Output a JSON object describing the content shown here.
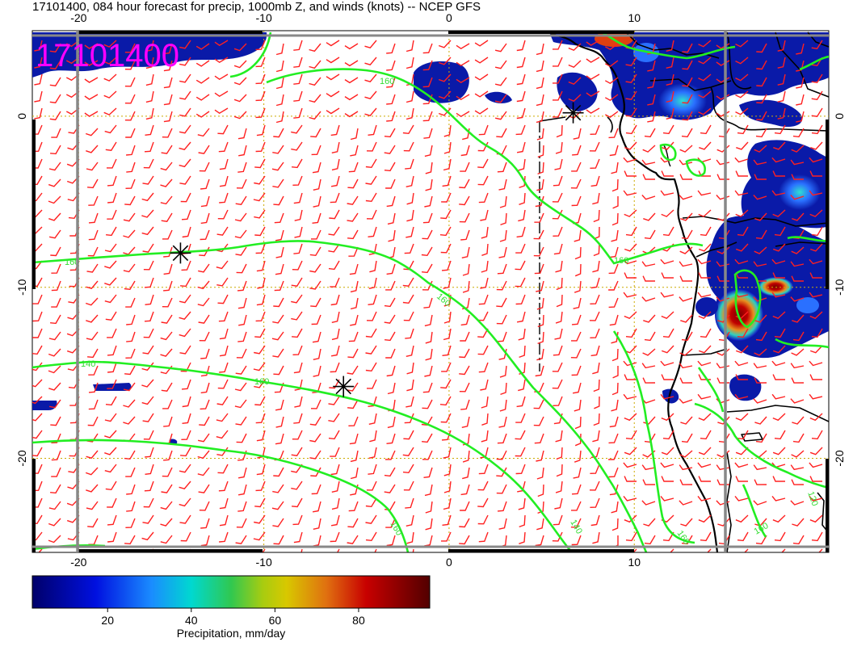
{
  "title": "17101400, 084 hour forecast for precip, 1000mb Z, and winds (knots) -- NCEP GFS",
  "stamp": "17101400",
  "colors": {
    "barb": "#ff2020",
    "contour": "#22ee22",
    "grid": "#ccaa00",
    "coast": "#000000",
    "stamp": "#ff00ff"
  },
  "colorbar": {
    "label": "Precipitation, mm/day",
    "ticks": [
      "20",
      "40",
      "60",
      "80"
    ],
    "tick_values": [
      20,
      40,
      60,
      80
    ],
    "range": [
      2,
      97
    ]
  },
  "chart_data": {
    "type": "map",
    "x_range": [
      -22.5,
      20.5
    ],
    "y_range": [
      -25.5,
      5
    ],
    "x_ticks": [
      -20,
      -10,
      0,
      10
    ],
    "x_tick_labels": [
      "-20",
      "-10",
      "0",
      "10"
    ],
    "y_ticks": [
      0,
      -10,
      -20
    ],
    "y_tick_labels": [
      "0",
      "-10",
      "-20"
    ],
    "contour_labels": [
      "160",
      "160",
      "160",
      "160",
      "140",
      "160",
      "160",
      "140",
      "160",
      "120",
      "160"
    ],
    "highs_lows_markers": [
      [
        -14.5,
        -8
      ],
      [
        -5.7,
        -15.8
      ],
      [
        6.7,
        0.2
      ]
    ]
  }
}
